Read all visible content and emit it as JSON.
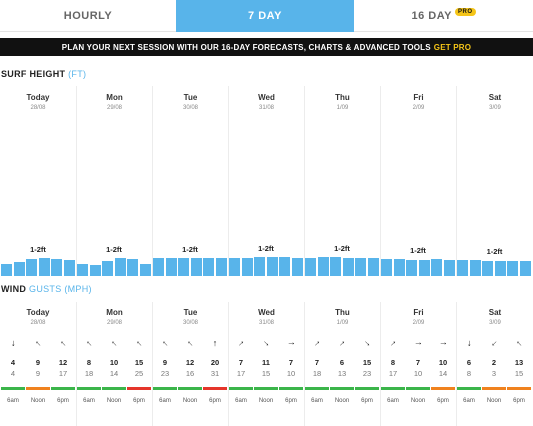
{
  "tabs": [
    {
      "label": "HOURLY",
      "active": false
    },
    {
      "label": "7 DAY",
      "active": true
    },
    {
      "label": "16 DAY",
      "active": false,
      "badge": "PRO"
    }
  ],
  "promo": {
    "text": "PLAN YOUR NEXT SESSION WITH OUR 16-DAY FORECASTS, CHARTS & ADVANCED TOOLS",
    "cta": "GET PRO"
  },
  "surf": {
    "title": "SURF HEIGHT",
    "unit": "(FT)",
    "bar_color": "#58b4ea",
    "days": [
      {
        "name": "Today",
        "date": "28/08",
        "label": "1-2ft",
        "heights": [
          0.58,
          0.72,
          0.84,
          0.9,
          0.86,
          0.8
        ]
      },
      {
        "name": "Mon",
        "date": "29/08",
        "label": "1-2ft",
        "heights": [
          0.62,
          0.55,
          0.74,
          0.9,
          0.84,
          0.6
        ]
      },
      {
        "name": "Tue",
        "date": "30/08",
        "label": "1-2ft",
        "heights": [
          0.9,
          0.9,
          0.9,
          0.9,
          0.9,
          0.9
        ]
      },
      {
        "name": "Wed",
        "date": "31/08",
        "label": "1-2ft",
        "heights": [
          0.9,
          0.92,
          0.93,
          0.93,
          0.93,
          0.92
        ]
      },
      {
        "name": "Thu",
        "date": "1/09",
        "label": "1-2ft",
        "heights": [
          0.92,
          0.93,
          0.93,
          0.92,
          0.92,
          0.9
        ]
      },
      {
        "name": "Fri",
        "date": "2/09",
        "label": "1-2ft",
        "heights": [
          0.84,
          0.84,
          0.82,
          0.82,
          0.84,
          0.82
        ]
      },
      {
        "name": "Sat",
        "date": "3/09",
        "label": "1-2ft",
        "heights": [
          0.78,
          0.78,
          0.76,
          0.76,
          0.74,
          0.74
        ]
      }
    ]
  },
  "wind": {
    "title": "WIND",
    "sub": "GUSTS (MPH)",
    "times": [
      "6am",
      "Noon",
      "6pm"
    ],
    "colors": {
      "green": "#3bb54a",
      "orange": "#f0821e",
      "red": "#e5352a"
    },
    "days": [
      {
        "name": "Today",
        "date": "28/08",
        "dirs": [
          180,
          315,
          315
        ],
        "speeds": [
          4,
          9,
          12
        ],
        "gusts": [
          4,
          9,
          17
        ],
        "bars": [
          "green",
          "orange",
          "green"
        ]
      },
      {
        "name": "Mon",
        "date": "29/08",
        "dirs": [
          315,
          315,
          315
        ],
        "speeds": [
          8,
          10,
          15
        ],
        "gusts": [
          18,
          14,
          25
        ],
        "bars": [
          "green",
          "green",
          "red"
        ]
      },
      {
        "name": "Tue",
        "date": "30/08",
        "dirs": [
          315,
          315,
          0
        ],
        "speeds": [
          9,
          12,
          20
        ],
        "gusts": [
          23,
          16,
          31
        ],
        "bars": [
          "green",
          "green",
          "red"
        ]
      },
      {
        "name": "Wed",
        "date": "31/08",
        "dirs": [
          45,
          135,
          90
        ],
        "speeds": [
          7,
          11,
          7
        ],
        "gusts": [
          17,
          15,
          10
        ],
        "bars": [
          "green",
          "green",
          "green"
        ]
      },
      {
        "name": "Thu",
        "date": "1/09",
        "dirs": [
          45,
          45,
          135
        ],
        "speeds": [
          7,
          6,
          15
        ],
        "gusts": [
          18,
          13,
          23
        ],
        "bars": [
          "green",
          "green",
          "green"
        ]
      },
      {
        "name": "Fri",
        "date": "2/09",
        "dirs": [
          45,
          90,
          90
        ],
        "speeds": [
          8,
          7,
          10
        ],
        "gusts": [
          17,
          10,
          14
        ],
        "bars": [
          "green",
          "green",
          "orange"
        ]
      },
      {
        "name": "Sat",
        "date": "3/09",
        "dirs": [
          180,
          225,
          315
        ],
        "speeds": [
          6,
          2,
          13
        ],
        "gusts": [
          8,
          3,
          15
        ],
        "bars": [
          "green",
          "orange",
          "orange"
        ]
      }
    ]
  }
}
